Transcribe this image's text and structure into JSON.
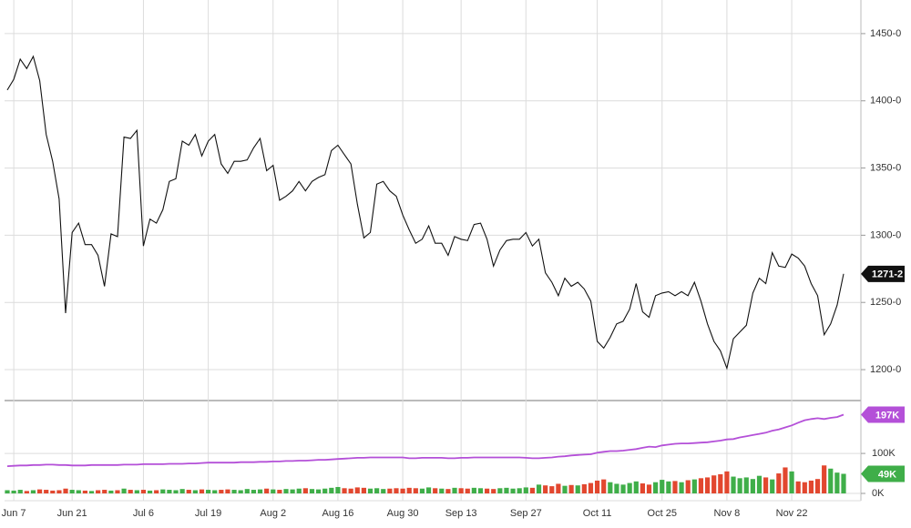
{
  "chart_data": [
    {
      "type": "line",
      "categories": [
        null,
        "Jun 7",
        null,
        null,
        null,
        null,
        null,
        null,
        null,
        null,
        "Jun 21",
        null,
        null,
        null,
        null,
        null,
        null,
        null,
        null,
        null,
        null,
        "Jul 6",
        null,
        null,
        null,
        null,
        null,
        null,
        null,
        null,
        null,
        "Jul 19",
        null,
        null,
        null,
        null,
        null,
        null,
        null,
        null,
        null,
        "Aug 2",
        null,
        null,
        null,
        null,
        null,
        null,
        null,
        null,
        null,
        "Aug 16",
        null,
        null,
        null,
        null,
        null,
        null,
        null,
        null,
        null,
        "Aug 30",
        null,
        null,
        null,
        null,
        null,
        null,
        null,
        null,
        "Sep 13",
        null,
        null,
        null,
        null,
        null,
        null,
        null,
        null,
        null,
        "Sep 27",
        null,
        null,
        null,
        null,
        null,
        null,
        null,
        null,
        null,
        null,
        "Oct 11",
        null,
        null,
        null,
        null,
        null,
        null,
        null,
        null,
        null,
        "Oct 25",
        null,
        null,
        null,
        null,
        null,
        null,
        null,
        null,
        null,
        "Nov 8",
        null,
        null,
        null,
        null,
        null,
        null,
        null,
        null,
        null,
        "Nov 22",
        null,
        null,
        null,
        null,
        null,
        null,
        null,
        null
      ],
      "values": [
        1408,
        1416,
        1431,
        1424,
        1433,
        1415,
        1375,
        1355,
        1327,
        1242,
        1302,
        1309,
        1293,
        1293,
        1285,
        1262,
        1301,
        1299,
        1373,
        1372,
        1378,
        1292,
        1312,
        1309,
        1319,
        1340,
        1342,
        1370,
        1367,
        1375,
        1359,
        1370,
        1375,
        1353,
        1346,
        1355,
        1355,
        1356,
        1365,
        1372,
        1348,
        1352,
        1326,
        1329,
        1333,
        1340,
        1333,
        1340,
        1343,
        1345,
        1363,
        1367,
        1360,
        1353,
        1323,
        1298,
        1302,
        1338,
        1340,
        1333,
        1329,
        1315,
        1304,
        1294,
        1297,
        1307,
        1294,
        1294,
        1285,
        1299,
        1297,
        1296,
        1308,
        1309,
        1297,
        1277,
        1289,
        1296,
        1297,
        1297,
        1302,
        1292,
        1297,
        1272,
        1265,
        1255,
        1268,
        1262,
        1265,
        1260,
        1251,
        1221,
        1216,
        1224,
        1234,
        1236,
        1245,
        1264,
        1243,
        1239,
        1255,
        1257,
        1258,
        1255,
        1258,
        1255,
        1265,
        1251,
        1234,
        1221,
        1214,
        1201,
        1223,
        1228,
        1233,
        1257,
        1268,
        1264,
        1287,
        1277,
        1276,
        1286,
        1283,
        1277,
        1264,
        1255,
        1226,
        1234,
        1248,
        1271.25
      ],
      "last_label": "1271-2",
      "color": "#111111",
      "ylim": [
        1177,
        1475
      ],
      "yticks": [
        {
          "value": 1200,
          "label": "1200-0"
        },
        {
          "value": 1250,
          "label": "1250-0"
        },
        {
          "value": 1300,
          "label": "1300-0"
        },
        {
          "value": 1350,
          "label": "1350-0"
        },
        {
          "value": 1400,
          "label": "1400-0"
        },
        {
          "value": 1450,
          "label": "1450-0"
        }
      ],
      "grid": true
    },
    {
      "type": "bar",
      "series": [
        {
          "type": "bar",
          "up_color": "#3fae49",
          "down_color": "#e2472f",
          "last_label": "49K",
          "values": [
            8,
            7,
            9,
            6,
            8,
            10,
            9,
            7,
            8,
            12,
            9,
            8,
            7,
            6,
            8,
            9,
            7,
            8,
            12,
            9,
            8,
            9,
            7,
            8,
            10,
            9,
            8,
            11,
            9,
            8,
            10,
            9,
            8,
            9,
            10,
            9,
            8,
            11,
            9,
            10,
            12,
            10,
            9,
            11,
            10,
            12,
            13,
            11,
            10,
            12,
            14,
            16,
            13,
            12,
            15,
            14,
            12,
            13,
            11,
            12,
            13,
            12,
            14,
            13,
            12,
            15,
            13,
            12,
            11,
            14,
            13,
            12,
            14,
            13,
            12,
            11,
            13,
            14,
            12,
            13,
            15,
            14,
            22,
            20,
            18,
            24,
            19,
            21,
            20,
            23,
            26,
            32,
            35,
            28,
            24,
            22,
            26,
            30,
            25,
            22,
            28,
            34,
            30,
            31,
            28,
            33,
            35,
            38,
            40,
            45,
            48,
            55,
            42,
            38,
            40,
            36,
            44,
            40,
            35,
            50,
            65,
            55,
            30,
            28,
            32,
            36,
            70,
            62,
            52,
            49
          ]
        },
        {
          "type": "line",
          "color": "#b450d8",
          "last_label": "197K",
          "values": [
            68,
            69,
            70,
            70,
            71,
            71,
            72,
            72,
            71,
            71,
            70,
            70,
            70,
            71,
            71,
            71,
            71,
            71,
            72,
            72,
            72,
            73,
            73,
            73,
            73,
            74,
            74,
            74,
            75,
            75,
            76,
            77,
            77,
            77,
            77,
            77,
            78,
            78,
            78,
            79,
            79,
            80,
            80,
            81,
            81,
            82,
            82,
            83,
            84,
            84,
            85,
            86,
            87,
            88,
            89,
            89,
            90,
            90,
            90,
            90,
            90,
            90,
            88,
            88,
            89,
            89,
            89,
            89,
            88,
            88,
            89,
            89,
            90,
            90,
            90,
            90,
            90,
            90,
            90,
            90,
            89,
            88,
            88,
            89,
            90,
            92,
            93,
            95,
            96,
            97,
            98,
            102,
            104,
            106,
            106,
            107,
            109,
            111,
            114,
            117,
            116,
            120,
            122,
            124,
            125,
            125,
            126,
            127,
            128,
            130,
            132,
            135,
            136,
            140,
            143,
            146,
            149,
            152,
            157,
            160,
            165,
            170,
            177,
            183,
            186,
            188,
            186,
            189,
            191,
            197
          ]
        }
      ],
      "ylim": [
        0,
        230
      ],
      "yticks": [
        {
          "value": 0,
          "label": "0K"
        },
        {
          "value": 100,
          "label": "100K"
        }
      ],
      "grid": true
    }
  ]
}
